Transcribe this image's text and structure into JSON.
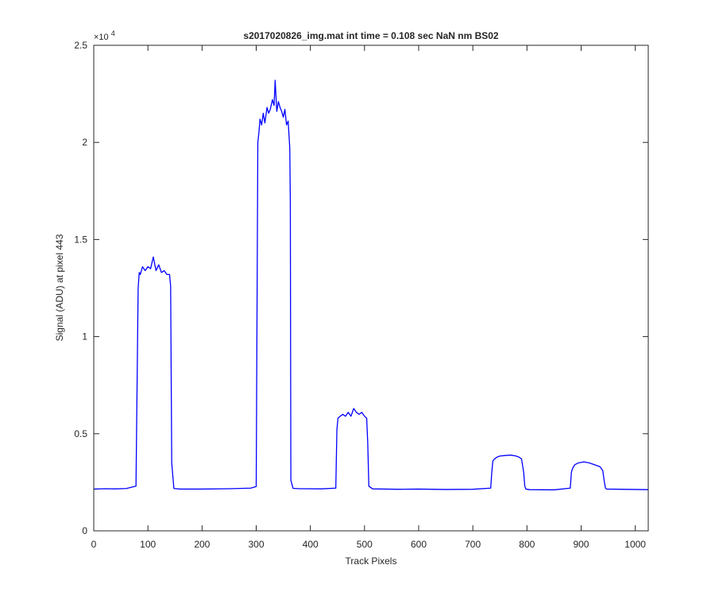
{
  "chart_data": {
    "type": "line",
    "title": "s2017020826_img.mat int time = 0.108 sec  NaN nm BS02",
    "xlabel": "Track Pixels",
    "ylabel": "Signal (ADU) at pixel 443",
    "y_exponent_label": "×10",
    "y_exponent_power": "4",
    "xlim": [
      0,
      1024
    ],
    "ylim": [
      0,
      25000
    ],
    "xticks": [
      0,
      100,
      200,
      300,
      400,
      500,
      600,
      700,
      800,
      900,
      1000
    ],
    "xtick_labels": [
      "0",
      "100",
      "200",
      "300",
      "400",
      "500",
      "600",
      "700",
      "800",
      "900",
      "1000"
    ],
    "yticks": [
      0,
      5000,
      10000,
      15000,
      20000,
      25000
    ],
    "ytick_labels": [
      "0",
      "0.5",
      "1",
      "1.5",
      "2",
      "2.5"
    ],
    "grid": false,
    "line_color": "#0000ff",
    "axis_color": "#262626",
    "series": [
      {
        "x": [
          0,
          20,
          40,
          60,
          78,
          82,
          84,
          86,
          90,
          95,
          100,
          105,
          110,
          115,
          120,
          125,
          130,
          135,
          140,
          142,
          144,
          148,
          160,
          200,
          250,
          290,
          300,
          303,
          305,
          307,
          310,
          313,
          316,
          320,
          323,
          326,
          330,
          333,
          335,
          338,
          341,
          344,
          347,
          350,
          353,
          356,
          359,
          362,
          363,
          364,
          368,
          380,
          420,
          447,
          449,
          451,
          455,
          460,
          465,
          470,
          475,
          480,
          485,
          490,
          495,
          500,
          504,
          506,
          508,
          515,
          560,
          600,
          650,
          700,
          733,
          735,
          737,
          740,
          745,
          750,
          760,
          770,
          780,
          785,
          790,
          794,
          796,
          798,
          805,
          850,
          880,
          882,
          884,
          888,
          895,
          905,
          915,
          925,
          935,
          940,
          943,
          945,
          947,
          1000,
          1024
        ],
        "y": [
          2150,
          2170,
          2160,
          2180,
          2300,
          12500,
          13300,
          13200,
          13600,
          13400,
          13600,
          13500,
          14100,
          13400,
          13700,
          13300,
          13400,
          13200,
          13200,
          12600,
          3500,
          2180,
          2150,
          2150,
          2170,
          2200,
          2280,
          20000,
          20500,
          21200,
          20900,
          21500,
          21000,
          21800,
          21500,
          21700,
          22200,
          21900,
          23200,
          21600,
          22100,
          21800,
          21600,
          21300,
          21700,
          20900,
          21100,
          19700,
          17000,
          2600,
          2190,
          2170,
          2160,
          2200,
          5200,
          5800,
          5900,
          6000,
          5900,
          6100,
          5900,
          6300,
          6100,
          6000,
          6100,
          5900,
          5800,
          4500,
          2300,
          2160,
          2140,
          2150,
          2130,
          2140,
          2200,
          3000,
          3600,
          3700,
          3800,
          3850,
          3880,
          3900,
          3850,
          3800,
          3700,
          3000,
          2300,
          2150,
          2120,
          2110,
          2200,
          3000,
          3200,
          3400,
          3500,
          3550,
          3500,
          3400,
          3300,
          3100,
          2500,
          2200,
          2150,
          2130,
          2120
        ]
      }
    ]
  }
}
